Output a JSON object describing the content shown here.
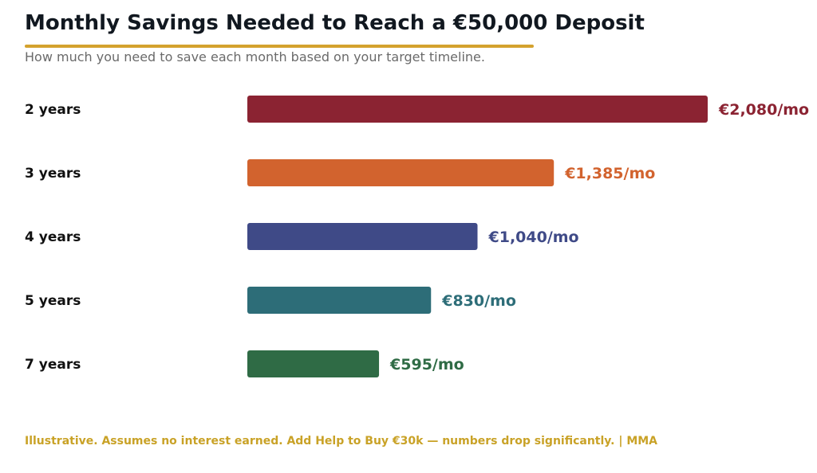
{
  "colors": {
    "rule": "#D4A22E",
    "footnote": "#C9A227"
  },
  "header": {
    "title": "Monthly Savings Needed to Reach a €50,000 Deposit",
    "subtitle": "How much you need to save each month based on your target timeline."
  },
  "footer": {
    "note": "Illustrative. Assumes no interest earned. Add Help to Buy €30k — numbers drop significantly.  |  MMA"
  },
  "chart_data": {
    "type": "bar",
    "orientation": "horizontal",
    "title": "Monthly Savings Needed to Reach a €50,000 Deposit",
    "subtitle": "How much you need to save each month based on your target timeline.",
    "categories": [
      "2 years",
      "3 years",
      "4 years",
      "5 years",
      "7 years"
    ],
    "values": [
      2080,
      1385,
      1040,
      830,
      595
    ],
    "value_labels": [
      "€2,080/mo",
      "€1,385/mo",
      "€1,040/mo",
      "€830/mo",
      "€595/mo"
    ],
    "colors": [
      "#8B2332",
      "#D2632E",
      "#3F4A87",
      "#2D6D78",
      "#2F6B45"
    ],
    "xlim": [
      0,
      2080
    ],
    "grid": false,
    "legend": "none"
  }
}
